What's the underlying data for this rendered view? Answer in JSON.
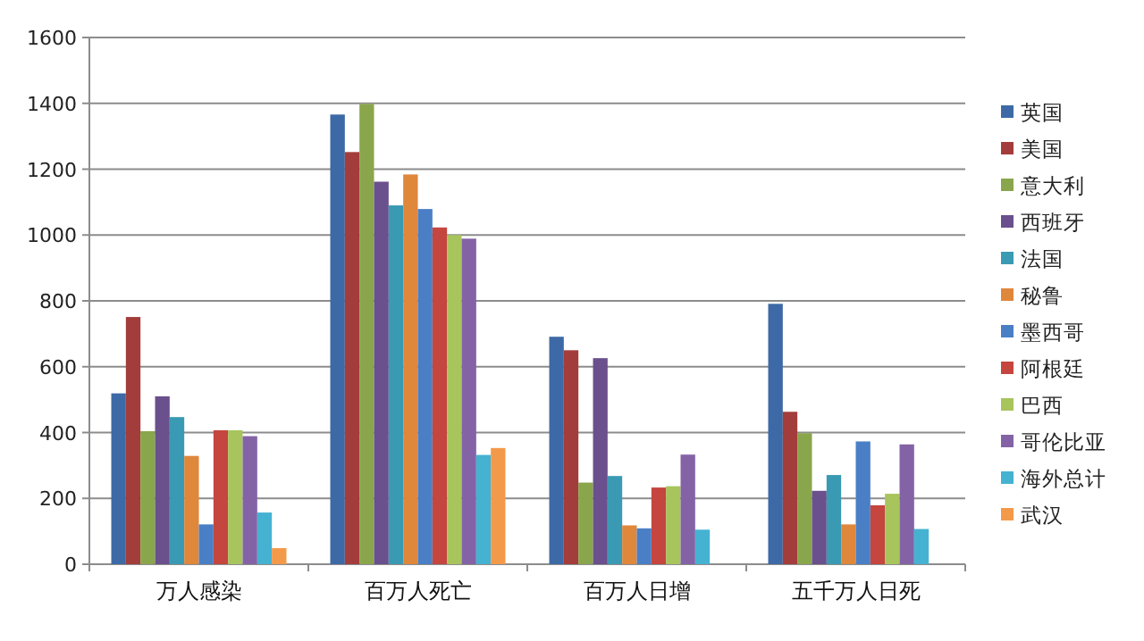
{
  "chart_data": {
    "type": "bar",
    "categories": [
      "万人感染",
      "百万人死亡",
      "百万人日增",
      "五千万人日死"
    ],
    "series": [
      {
        "name": "英国",
        "color": "#3d6aa6",
        "values": [
          519,
          1366,
          691,
          791
        ]
      },
      {
        "name": "美国",
        "color": "#a33d3b",
        "values": [
          751,
          1252,
          650,
          463
        ]
      },
      {
        "name": "意大利",
        "color": "#8aa64c",
        "values": [
          404,
          1398,
          248,
          398
        ]
      },
      {
        "name": "西班牙",
        "color": "#6a508c",
        "values": [
          510,
          1162,
          626,
          223
        ]
      },
      {
        "name": "法国",
        "color": "#3a9ab3",
        "values": [
          447,
          1090,
          268,
          271
        ]
      },
      {
        "name": "秘鲁",
        "color": "#df873b",
        "values": [
          329,
          1184,
          118,
          121
        ]
      },
      {
        "name": "墨西哥",
        "color": "#4a7fc6",
        "values": [
          121,
          1079,
          109,
          373
        ]
      },
      {
        "name": "阿根廷",
        "color": "#c4463f",
        "values": [
          407,
          1023,
          233,
          179
        ]
      },
      {
        "name": "巴西",
        "color": "#a8c45c",
        "values": [
          407,
          1000,
          237,
          214
        ]
      },
      {
        "name": "哥伦比亚",
        "color": "#8363a6",
        "values": [
          389,
          989,
          333,
          364
        ]
      },
      {
        "name": "海外总计",
        "color": "#45b2d2",
        "values": [
          157,
          332,
          105,
          107
        ]
      },
      {
        "name": "武汉",
        "color": "#f3994a",
        "values": [
          49,
          353,
          null,
          null
        ]
      }
    ],
    "ylim": [
      0,
      1600
    ],
    "yticks": [
      0,
      200,
      400,
      600,
      800,
      1000,
      1200,
      1400,
      1600
    ],
    "grid": "y",
    "legend": "right"
  }
}
